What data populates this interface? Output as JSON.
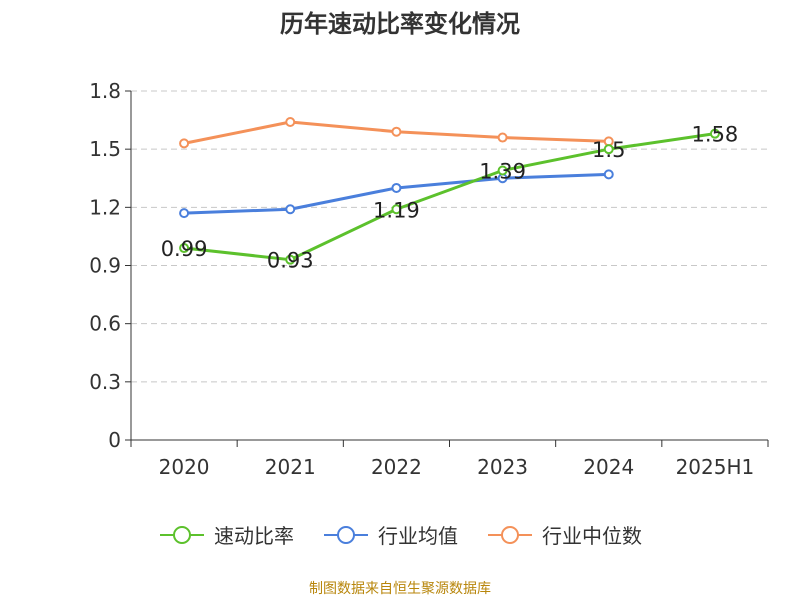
{
  "chart_data": {
    "type": "line",
    "title": "历年速动比率变化情况",
    "categories": [
      "2020",
      "2021",
      "2022",
      "2023",
      "2024",
      "2025H1"
    ],
    "ylim": [
      0,
      1.8
    ],
    "yticks": [
      "0",
      "0.3",
      "0.6",
      "0.9",
      "1.2",
      "1.5",
      "1.8"
    ],
    "grid": true,
    "legend_position": "bottom",
    "series": [
      {
        "name": "速动比率",
        "color": "#5cc12c",
        "values": [
          0.99,
          0.93,
          1.19,
          1.39,
          1.5,
          1.58
        ],
        "labels": [
          "0.99",
          "0.93",
          "1.19",
          "1.39",
          "1.5",
          "1.58"
        ]
      },
      {
        "name": "行业均值",
        "color": "#4a7fdc",
        "values": [
          1.17,
          1.19,
          1.3,
          1.35,
          1.37,
          null
        ]
      },
      {
        "name": "行业中位数",
        "color": "#f49159",
        "values": [
          1.53,
          1.64,
          1.59,
          1.56,
          1.54,
          null
        ]
      }
    ]
  },
  "source": "制图数据来自恒生聚源数据库"
}
